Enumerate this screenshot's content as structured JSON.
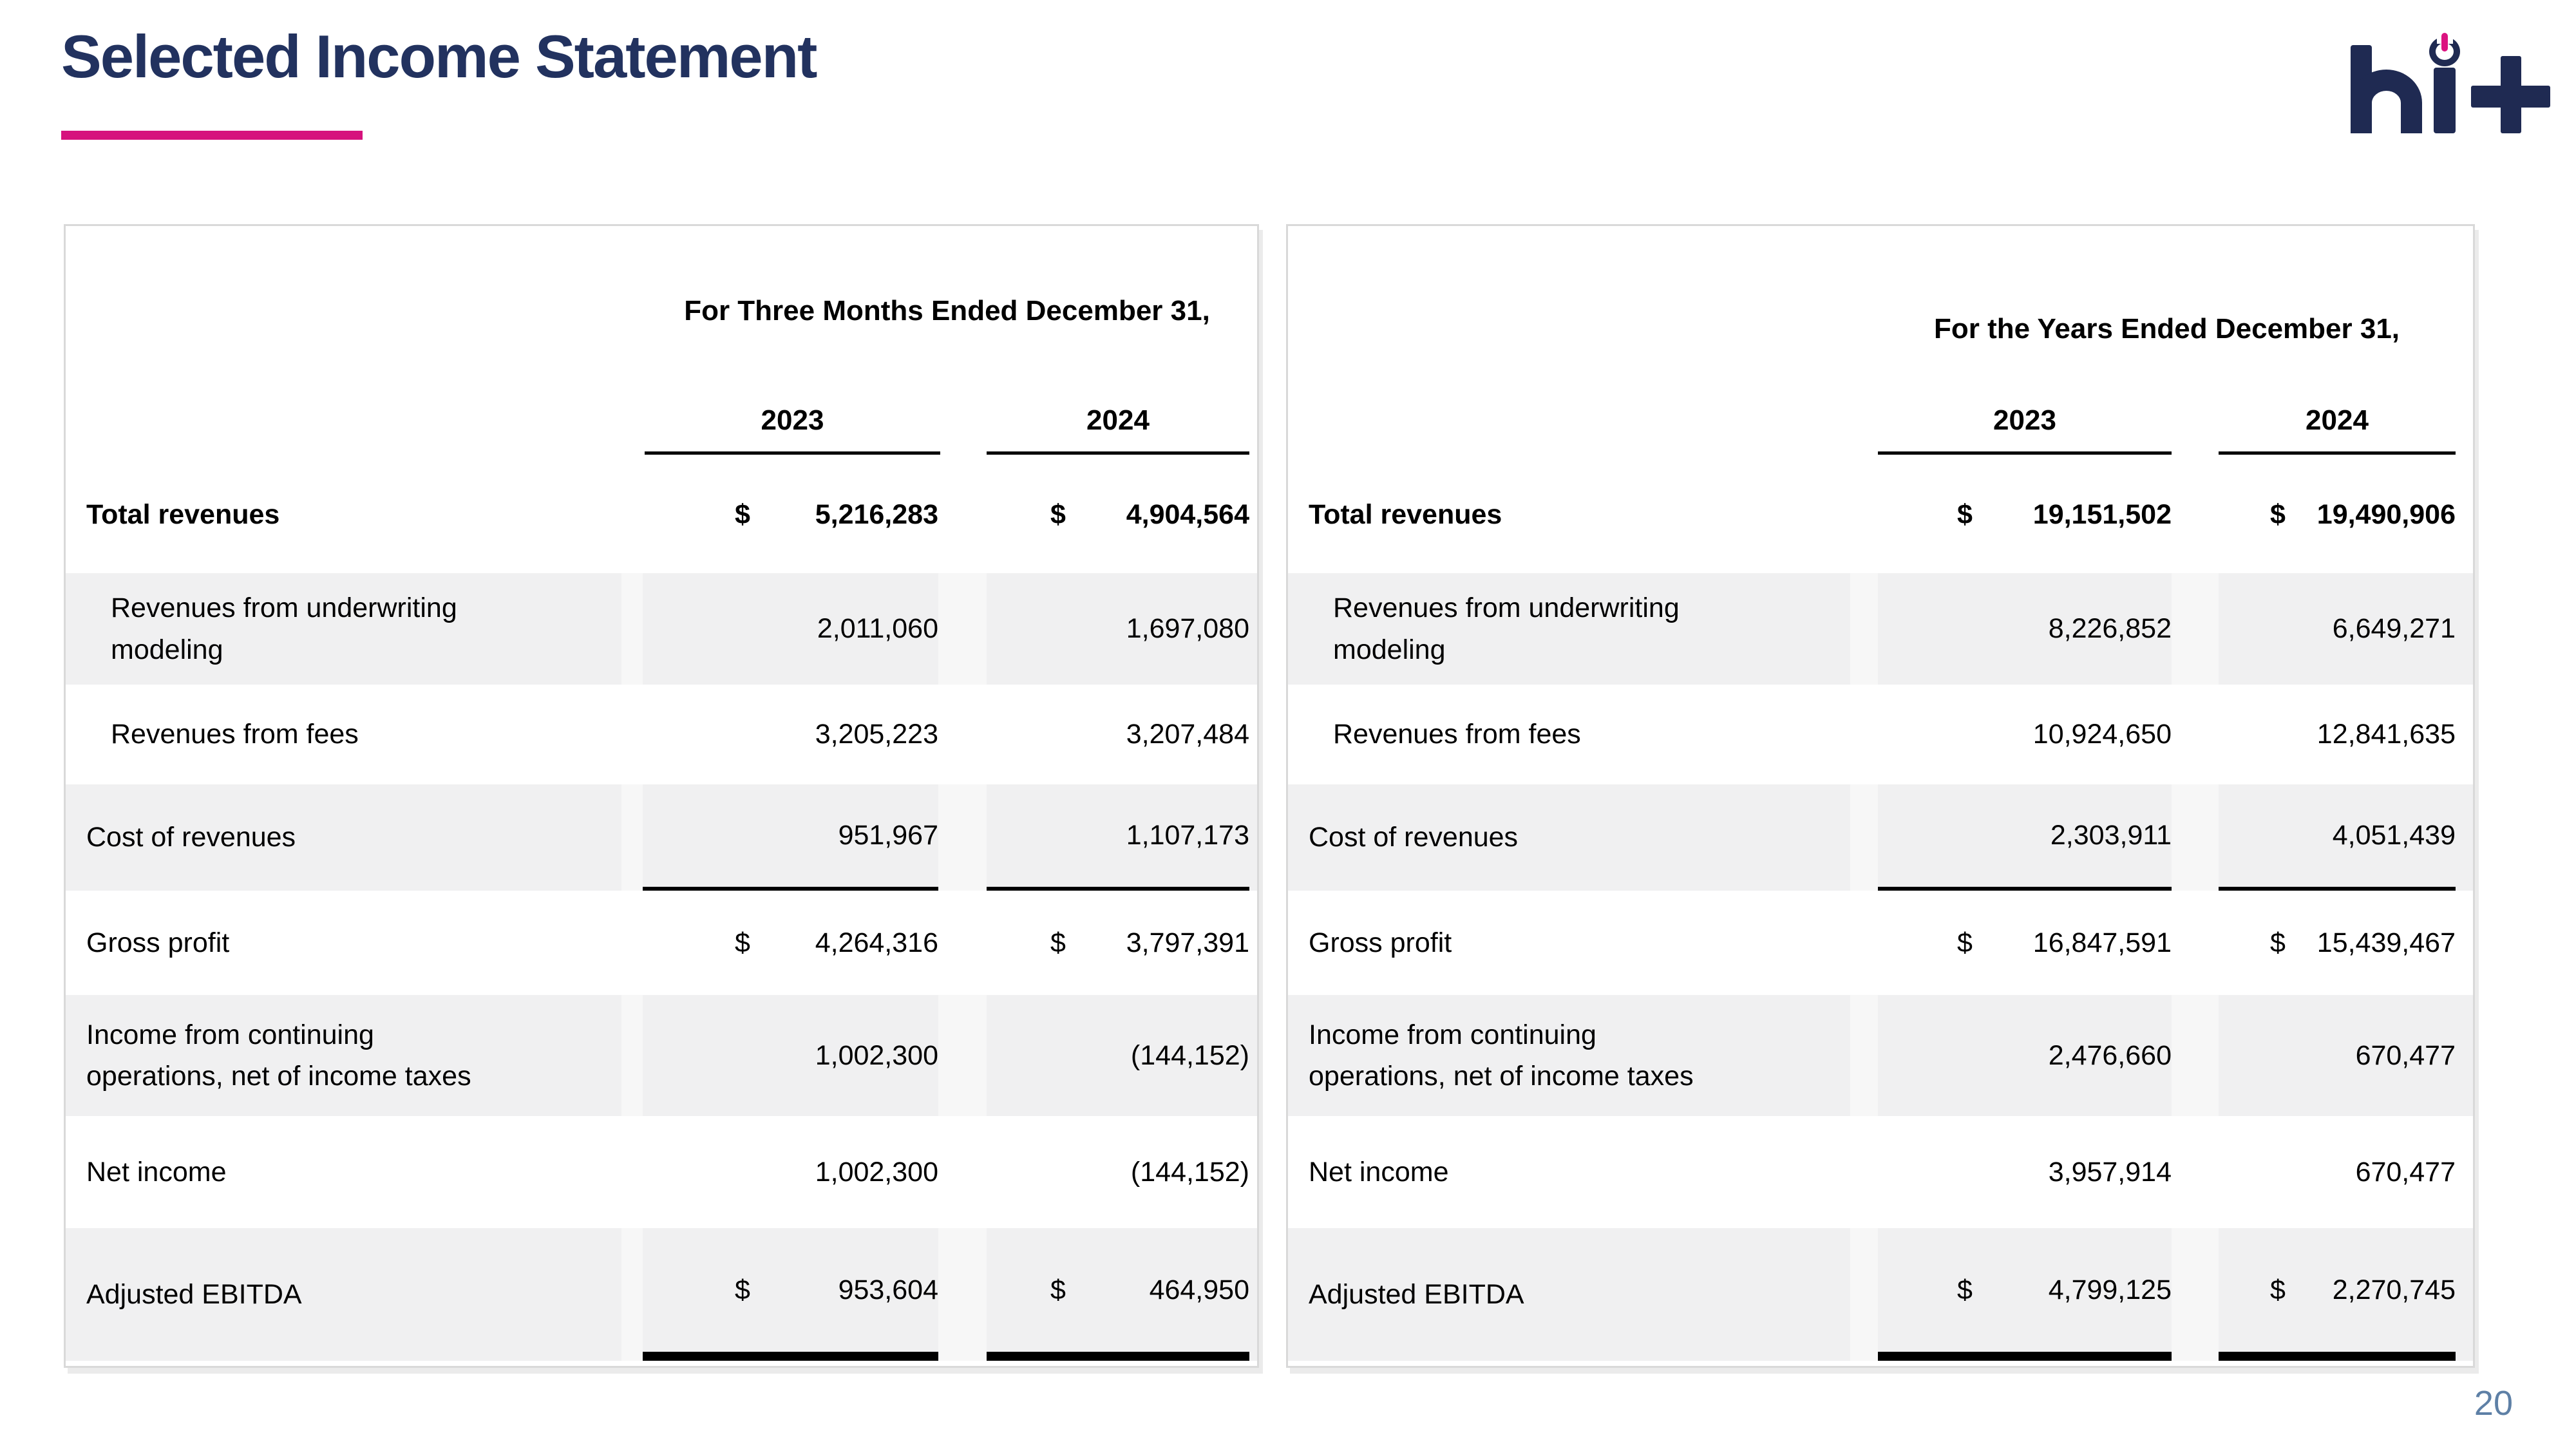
{
  "slide": {
    "title": "Selected Income Statement",
    "page_number": "20"
  },
  "brand": {
    "logo_text": "hi+",
    "navy": "#1F2A52",
    "pink": "#DB1380",
    "title_color": "#22325F",
    "accent_color": "#D6127D",
    "page_number_color": "#5E80A6",
    "stripe_color": "#F0F0F1"
  },
  "left_table": {
    "period_header": "For Three Months Ended December 31,",
    "years": [
      "2023",
      "2024"
    ],
    "rows": [
      {
        "label": "Total revenues",
        "d1": "$",
        "v1": "5,216,283",
        "d2": "$",
        "v2": "4,904,564"
      },
      {
        "label": "Revenues from underwriting modeling",
        "d1": "",
        "v1": "2,011,060",
        "d2": "",
        "v2": "1,697,080"
      },
      {
        "label": "Revenues from fees",
        "d1": "",
        "v1": "3,205,223",
        "d2": "",
        "v2": "3,207,484"
      },
      {
        "label": "Cost of revenues",
        "d1": "",
        "v1": "951,967",
        "d2": "",
        "v2": "1,107,173"
      },
      {
        "label": "Gross profit",
        "d1": "$",
        "v1": "4,264,316",
        "d2": "$",
        "v2": "3,797,391"
      },
      {
        "label": "Income from continuing operations, net of income taxes",
        "d1": "",
        "v1": "1,002,300",
        "d2": "",
        "v2": "(144,152)"
      },
      {
        "label": "Net income",
        "d1": "",
        "v1": "1,002,300",
        "d2": "",
        "v2": "(144,152)"
      },
      {
        "label": "Adjusted EBITDA",
        "d1": "$",
        "v1": "953,604",
        "d2": "$",
        "v2": "464,950"
      }
    ]
  },
  "right_table": {
    "period_header": "For the Years Ended December 31,",
    "years": [
      "2023",
      "2024"
    ],
    "rows": [
      {
        "label": "Total revenues",
        "d1": "$",
        "v1": "19,151,502",
        "d2": "$",
        "v2": "19,490,906"
      },
      {
        "label": "Revenues from underwriting modeling",
        "d1": "",
        "v1": "8,226,852",
        "d2": "",
        "v2": "6,649,271"
      },
      {
        "label": "Revenues from fees",
        "d1": "",
        "v1": "10,924,650",
        "d2": "",
        "v2": "12,841,635"
      },
      {
        "label": "Cost of revenues",
        "d1": "",
        "v1": "2,303,911",
        "d2": "",
        "v2": "4,051,439"
      },
      {
        "label": "Gross profit",
        "d1": "$",
        "v1": "16,847,591",
        "d2": "$",
        "v2": "15,439,467"
      },
      {
        "label": "Income from continuing operations, net of income taxes",
        "d1": "",
        "v1": "2,476,660",
        "d2": "",
        "v2": "670,477"
      },
      {
        "label": "Net income",
        "d1": "",
        "v1": "3,957,914",
        "d2": "",
        "v2": "670,477"
      },
      {
        "label": "Adjusted EBITDA",
        "d1": "$",
        "v1": "4,799,125",
        "d2": "$",
        "v2": "2,270,745"
      }
    ]
  }
}
